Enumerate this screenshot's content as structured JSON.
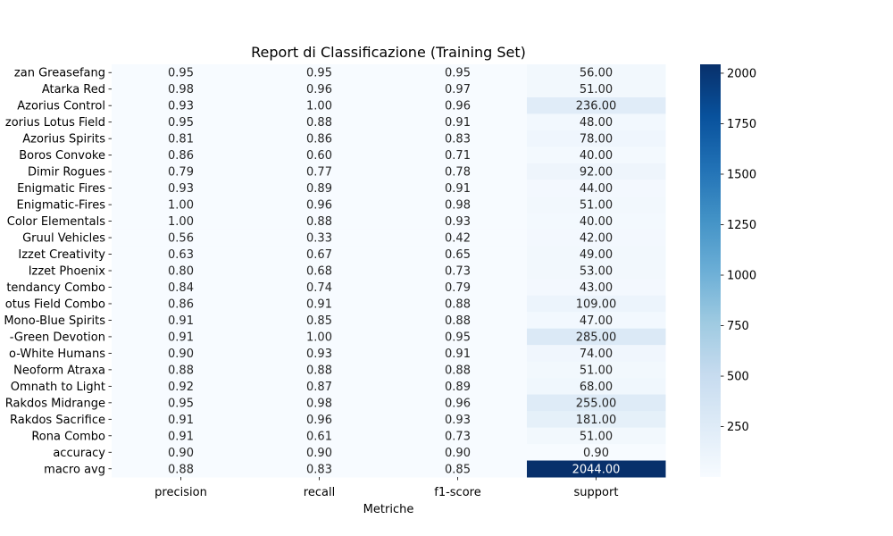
{
  "chart_data": {
    "type": "heatmap",
    "title": "Report di Classificazione (Training Set)",
    "xlabel": "Metriche",
    "ylabel": "",
    "columns": [
      "precision",
      "recall",
      "f1-score",
      "support"
    ],
    "rows": [
      "zan Greasefang",
      "Atarka Red",
      "Azorius Control",
      "zorius Lotus Field",
      "Azorius Spirits",
      "Boros Convoke",
      "Dimir Rogues",
      "Enigmatic Fires",
      "Enigmatic-Fires",
      "Color Elementals",
      "Gruul Vehicles",
      "Izzet Creativity",
      "Izzet Phoenix",
      "tendancy Combo",
      "otus Field Combo",
      "Mono-Blue Spirits",
      "-Green Devotion",
      "o-White Humans",
      "Neoform Atraxa",
      "Omnath to Light",
      "Rakdos Midrange",
      "Rakdos Sacrifice",
      "Rona Combo",
      "accuracy",
      "macro avg"
    ],
    "values": [
      [
        0.95,
        0.95,
        0.95,
        56.0
      ],
      [
        0.98,
        0.96,
        0.97,
        51.0
      ],
      [
        0.93,
        1.0,
        0.96,
        236.0
      ],
      [
        0.95,
        0.88,
        0.91,
        48.0
      ],
      [
        0.81,
        0.86,
        0.83,
        78.0
      ],
      [
        0.86,
        0.6,
        0.71,
        40.0
      ],
      [
        0.79,
        0.77,
        0.78,
        92.0
      ],
      [
        0.93,
        0.89,
        0.91,
        44.0
      ],
      [
        1.0,
        0.96,
        0.98,
        51.0
      ],
      [
        1.0,
        0.88,
        0.93,
        40.0
      ],
      [
        0.56,
        0.33,
        0.42,
        42.0
      ],
      [
        0.63,
        0.67,
        0.65,
        49.0
      ],
      [
        0.8,
        0.68,
        0.73,
        53.0
      ],
      [
        0.84,
        0.74,
        0.79,
        43.0
      ],
      [
        0.86,
        0.91,
        0.88,
        109.0
      ],
      [
        0.91,
        0.85,
        0.88,
        47.0
      ],
      [
        0.91,
        1.0,
        0.95,
        285.0
      ],
      [
        0.9,
        0.93,
        0.91,
        74.0
      ],
      [
        0.88,
        0.88,
        0.88,
        51.0
      ],
      [
        0.92,
        0.87,
        0.89,
        68.0
      ],
      [
        0.95,
        0.98,
        0.96,
        255.0
      ],
      [
        0.91,
        0.96,
        0.93,
        181.0
      ],
      [
        0.91,
        0.61,
        0.73,
        51.0
      ],
      [
        0.9,
        0.9,
        0.9,
        0.9
      ],
      [
        0.88,
        0.83,
        0.85,
        2044.0
      ]
    ],
    "colorscale": "Blues",
    "vmin": 0.33,
    "vmax": 2044.0,
    "colorbar_ticks": [
      250,
      500,
      750,
      1000,
      1250,
      1500,
      1750,
      2000
    ],
    "value_format": "2 decimals",
    "grid": false,
    "colorbar_position": "right"
  }
}
